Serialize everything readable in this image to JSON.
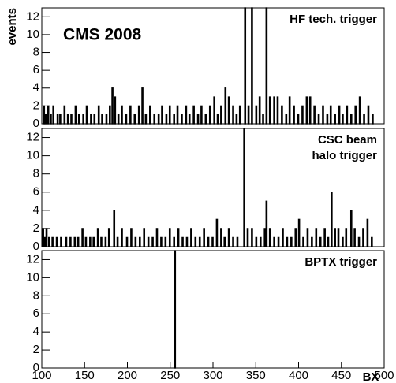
{
  "chart_data": [
    {
      "type": "bar",
      "title": [
        "HF tech. trigger"
      ],
      "annotation": "CMS 2008",
      "ylabel": "events",
      "x": [
        102,
        104,
        107,
        110,
        113,
        118,
        121,
        126,
        130,
        134,
        139,
        143,
        148,
        152,
        157,
        161,
        166,
        170,
        175,
        179,
        182,
        185,
        189,
        193,
        198,
        203,
        208,
        213,
        217,
        221,
        226,
        231,
        236,
        240,
        245,
        249,
        254,
        258,
        263,
        268,
        272,
        277,
        282,
        286,
        291,
        296,
        301,
        305,
        309,
        314,
        318,
        323,
        327,
        331,
        337,
        341,
        345,
        350,
        354,
        358,
        362,
        366,
        371,
        375,
        380,
        385,
        389,
        394,
        399,
        404,
        409,
        413,
        418,
        423,
        428,
        433,
        437,
        442,
        447,
        451,
        456,
        461,
        466,
        471,
        476,
        481,
        486
      ],
      "values": [
        2,
        1,
        2,
        1,
        2,
        1,
        1,
        2,
        1,
        1,
        2,
        1,
        1,
        2,
        1,
        1,
        2,
        1,
        1,
        2,
        4,
        3,
        1,
        2,
        1,
        2,
        1,
        2,
        4,
        1,
        2,
        1,
        1,
        2,
        1,
        2,
        1,
        2,
        1,
        2,
        1,
        2,
        1,
        2,
        1,
        2,
        3,
        1,
        2,
        4,
        3,
        2,
        1,
        2,
        13,
        2,
        13,
        2,
        3,
        1,
        13,
        3,
        3,
        3,
        2,
        1,
        3,
        2,
        1,
        2,
        3,
        3,
        2,
        1,
        2,
        1,
        2,
        1,
        2,
        1,
        2,
        1,
        2,
        3,
        1,
        2,
        1
      ],
      "color": "#000000",
      "xlim": [
        100,
        500
      ],
      "ylim": [
        0,
        13
      ],
      "yticks": [
        0,
        2,
        4,
        6,
        8,
        10,
        12
      ]
    },
    {
      "type": "bar",
      "title": [
        "CSC beam",
        "halo trigger"
      ],
      "x": [
        101,
        103,
        105,
        108,
        112,
        117,
        122,
        128,
        133,
        138,
        142,
        147,
        151,
        156,
        160,
        165,
        169,
        174,
        178,
        184,
        188,
        193,
        199,
        204,
        209,
        214,
        219,
        224,
        229,
        234,
        239,
        244,
        249,
        254,
        259,
        264,
        269,
        274,
        279,
        284,
        289,
        294,
        299,
        304,
        309,
        313,
        318,
        323,
        328,
        336,
        340,
        345,
        350,
        355,
        360,
        362,
        366,
        371,
        376,
        381,
        386,
        391,
        396,
        400,
        405,
        410,
        415,
        420,
        425,
        430,
        434,
        438,
        442,
        446,
        451,
        455,
        461,
        465,
        470,
        475,
        480,
        485
      ],
      "values": [
        2,
        1,
        2,
        1,
        1,
        1,
        1,
        1,
        1,
        1,
        1,
        2,
        1,
        1,
        1,
        2,
        1,
        1,
        2,
        4,
        1,
        2,
        1,
        2,
        1,
        1,
        2,
        1,
        1,
        2,
        1,
        1,
        2,
        1,
        2,
        1,
        1,
        2,
        1,
        1,
        2,
        1,
        1,
        3,
        2,
        1,
        2,
        1,
        1,
        13,
        2,
        2,
        1,
        1,
        2,
        5,
        2,
        1,
        1,
        2,
        1,
        1,
        2,
        3,
        1,
        2,
        1,
        2,
        1,
        2,
        1,
        6,
        2,
        2,
        1,
        2,
        4,
        2,
        1,
        2,
        3,
        1
      ],
      "color": "#000000",
      "xlim": [
        100,
        500
      ],
      "ylim": [
        0,
        13
      ],
      "yticks": [
        0,
        2,
        4,
        6,
        8,
        10,
        12
      ]
    },
    {
      "type": "bar",
      "title": [
        "BPTX trigger"
      ],
      "xlabel": "BX",
      "x": [
        255
      ],
      "values": [
        13
      ],
      "color": "#000000",
      "xlim": [
        100,
        500
      ],
      "ylim": [
        0,
        13
      ],
      "yticks": [
        0,
        2,
        4,
        6,
        8,
        10,
        12
      ],
      "xticks": [
        100,
        150,
        200,
        250,
        300,
        350,
        400,
        450,
        500
      ]
    }
  ]
}
